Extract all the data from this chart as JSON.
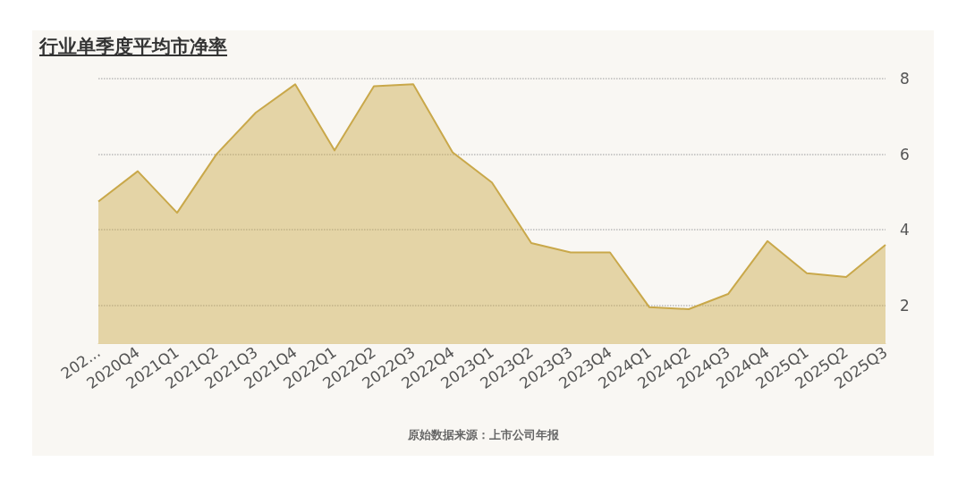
{
  "chart_data": {
    "type": "area",
    "title": "行业单季度平均市净率",
    "categories": [
      "202...",
      "2020Q4",
      "2021Q1",
      "2021Q2",
      "2021Q3",
      "2021Q4",
      "2022Q1",
      "2022Q2",
      "2022Q3",
      "2022Q4",
      "2023Q1",
      "2023Q2",
      "2023Q3",
      "2023Q4",
      "2024Q1",
      "2024Q2",
      "2024Q3",
      "2024Q4",
      "2025Q1",
      "2025Q2",
      "2025Q3"
    ],
    "series": [
      {
        "color": "#c9a84a",
        "values": [
          4.75,
          5.55,
          4.45,
          6.0,
          7.1,
          7.85,
          6.1,
          7.8,
          7.85,
          6.05,
          5.25,
          3.65,
          3.4,
          3.4,
          1.95,
          1.9,
          2.3,
          3.7,
          2.85,
          2.75,
          3.6
        ]
      }
    ],
    "ylim": [
      1,
      8
    ],
    "yticks": [
      2,
      4,
      6,
      8
    ],
    "grid": "y",
    "marker": "none",
    "annotations": [
      "原始数据来源：上市公司年报"
    ]
  }
}
